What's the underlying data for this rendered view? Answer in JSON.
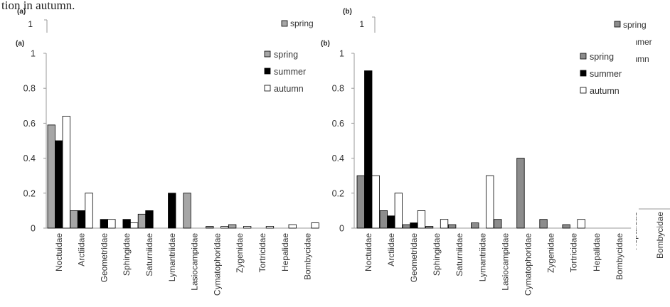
{
  "background_fragments": {
    "caption_tail": "tion in autumn.",
    "panel_a_label": "(a)",
    "panel_b_label": "(b)",
    "axis_tick_one": "1",
    "legend_spring": "spring",
    "legend_summer_partial": "mmer",
    "legend_autumn_partial": "tumn",
    "xlabel_hepalidae_partial": "Hepalidae",
    "xlabel_bombycidae": "Bombycidae"
  },
  "colors": {
    "spring": "#a6a6a6",
    "spring_b": "#8c8c8c",
    "summer": "#000000",
    "autumn": "#ffffff",
    "outline": "#000000"
  },
  "chart_data": [
    {
      "type": "bar",
      "panel_label": "(a)",
      "categories": [
        "Noctuidae",
        "Arctiidae",
        "Geometridae",
        "Sphingidae",
        "Saturniidae",
        "Lymantriidae",
        "Lasiocampidae",
        "Cymatophoridae",
        "Zygenidae",
        "Tortricidae",
        "Hepalidae",
        "Bombycidae"
      ],
      "series": [
        {
          "name": "spring",
          "values": [
            0.59,
            0.1,
            0.0,
            0.0,
            0.08,
            0.0,
            0.2,
            0.01,
            0.02,
            0.0,
            0.0,
            0.0
          ]
        },
        {
          "name": "summer",
          "values": [
            0.5,
            0.1,
            0.05,
            0.05,
            0.1,
            0.2,
            0.0,
            0.0,
            0.0,
            0.0,
            0.0,
            0.0
          ]
        },
        {
          "name": "autumn",
          "values": [
            0.64,
            0.2,
            0.05,
            0.03,
            0.0,
            0.0,
            0.0,
            0.01,
            0.01,
            0.01,
            0.02,
            0.03
          ]
        }
      ],
      "yticks": [
        "0",
        "0.2",
        "0.4",
        "0.6",
        "0.8",
        "1"
      ],
      "ylim": [
        0,
        1
      ],
      "legend_position": "top-right",
      "grid": false
    },
    {
      "type": "bar",
      "panel_label": "(b)",
      "categories": [
        "Noctuidae",
        "Arctiidae",
        "Geometridae",
        "Sphingidae",
        "Saturniidae",
        "Lymantriidae",
        "Lasiocampidae",
        "Cymatophoridae",
        "Zygenidae",
        "Tortricidae",
        "Hepalidae",
        "Bombycidae"
      ],
      "series": [
        {
          "name": "spring",
          "values": [
            0.3,
            0.1,
            0.02,
            0.01,
            0.02,
            0.03,
            0.05,
            0.4,
            0.05,
            0.02,
            0.0,
            0.0
          ]
        },
        {
          "name": "summer",
          "values": [
            0.9,
            0.07,
            0.03,
            0.0,
            0.0,
            0.0,
            0.0,
            0.0,
            0.0,
            0.0,
            0.0,
            0.0
          ]
        },
        {
          "name": "autumn",
          "values": [
            0.3,
            0.2,
            0.1,
            0.05,
            0.0,
            0.3,
            0.0,
            0.0,
            0.0,
            0.05,
            0.0,
            0.0
          ]
        }
      ],
      "yticks": [
        "0",
        "0.2",
        "0.4",
        "0.6",
        "0.8",
        "1"
      ],
      "ylim": [
        0,
        1
      ],
      "legend_position": "top-right",
      "grid": false
    }
  ]
}
